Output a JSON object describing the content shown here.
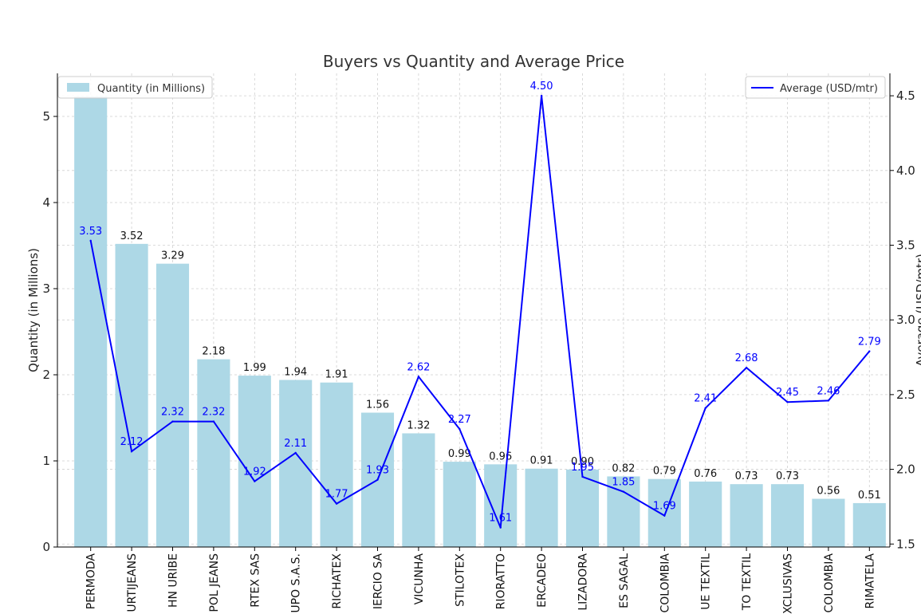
{
  "chart_data": {
    "type": "bar",
    "title": "Buyers vs Quantity and Average Price",
    "xlabel": "",
    "ylabel": "Quantity (in Millions)",
    "y2label": "Average (USD/mtr)",
    "categories": [
      "PERMODA",
      "URTIJEANS",
      "HN URIBE",
      "POL JEANS",
      "RTEX SAS",
      "UPO S.A.S.",
      "RICHATEX",
      "IERCIO SA",
      "VICUNHA",
      "STILOTEX",
      "RIORATTO",
      "ERCADEO",
      "LIZADORA",
      "ES SAGAL",
      "COLOMBIA",
      "UE TEXTIL",
      "TO TEXTIL",
      "XCLUSIVAS",
      "COLOMBIA",
      "RIMATELA"
    ],
    "series": [
      {
        "name": "Quantity (in Millions)",
        "kind": "bar",
        "axis": "left",
        "color": "#add8e6",
        "values": [
          5.23,
          3.52,
          3.29,
          2.18,
          1.99,
          1.94,
          1.91,
          1.56,
          1.32,
          0.99,
          0.96,
          0.91,
          0.9,
          0.82,
          0.79,
          0.76,
          0.73,
          0.73,
          0.56,
          0.51
        ],
        "labels": [
          null,
          "3.52",
          "3.29",
          "2.18",
          "1.99",
          "1.94",
          "1.91",
          "1.56",
          "1.32",
          "0.99",
          "0.96",
          "0.91",
          "0.90",
          "0.82",
          "0.79",
          "0.76",
          "0.73",
          "0.73",
          "0.56",
          "0.51"
        ]
      },
      {
        "name": "Average (USD/mtr)",
        "kind": "line",
        "axis": "right",
        "color": "#0000ff",
        "values": [
          3.53,
          2.12,
          2.32,
          2.32,
          1.92,
          2.11,
          1.77,
          1.93,
          2.62,
          2.27,
          1.61,
          4.5,
          1.95,
          1.85,
          1.69,
          2.41,
          2.68,
          2.45,
          2.46,
          2.79
        ],
        "labels": [
          "3.53",
          "2.12",
          "2.32",
          "2.32",
          "1.92",
          "2.11",
          "1.77",
          "1.93",
          "2.62",
          "2.27",
          "1.61",
          "4.50",
          "1.95",
          "1.85",
          "1.69",
          "2.41",
          "2.68",
          "2.45",
          "2.46",
          "2.79"
        ]
      }
    ],
    "ylim": [
      0,
      5.5
    ],
    "yticks": [
      "0",
      "1",
      "2",
      "3",
      "4",
      "5"
    ],
    "y2lim": [
      1.48,
      4.65
    ],
    "y2ticks": [
      "1.5",
      "2.0",
      "2.5",
      "3.0",
      "3.5",
      "4.0",
      "4.5"
    ],
    "grid": true,
    "legend_left": "top-left",
    "legend_right": "top-right"
  }
}
